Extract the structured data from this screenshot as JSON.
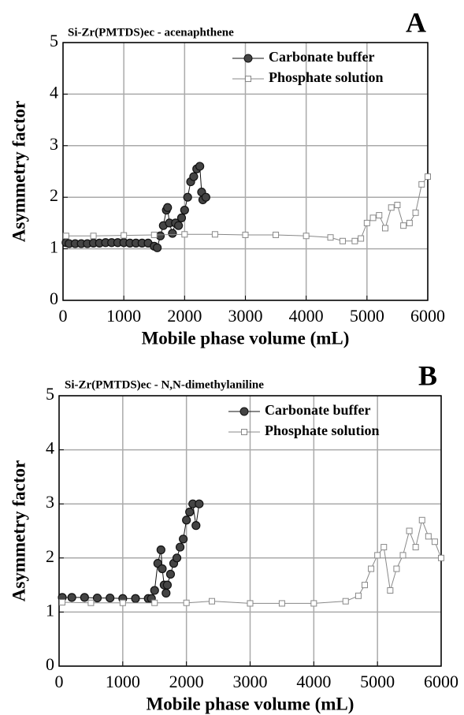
{
  "chart_data": [
    {
      "type": "line",
      "title": "Si-Zr(PMTDS)ec   -  acenaphthene",
      "panel_label": "A",
      "xlabel": "Mobile phase volume (mL)",
      "ylabel": "Asymmetry factor",
      "xlim": [
        0,
        6000
      ],
      "ylim": [
        0,
        5
      ],
      "xticks": [
        0,
        1000,
        2000,
        3000,
        4000,
        5000,
        6000
      ],
      "yticks": [
        0,
        1,
        2,
        3,
        4,
        5
      ],
      "grid": true,
      "legend": "upper right",
      "series": [
        {
          "name": "Carbonate buffer",
          "color": "#111111",
          "marker": "circle",
          "x": [
            50,
            100,
            200,
            300,
            400,
            500,
            600,
            700,
            800,
            900,
            1000,
            1100,
            1200,
            1300,
            1400,
            1500,
            1550,
            1600,
            1650,
            1700,
            1720,
            1750,
            1800,
            1850,
            1900,
            1950,
            2000,
            2050,
            2100,
            2150,
            2200,
            2250,
            2280,
            2300,
            2350
          ],
          "values": [
            1.12,
            1.1,
            1.1,
            1.1,
            1.1,
            1.11,
            1.11,
            1.12,
            1.12,
            1.12,
            1.12,
            1.11,
            1.11,
            1.11,
            1.11,
            1.05,
            1.02,
            1.25,
            1.45,
            1.75,
            1.8,
            1.5,
            1.3,
            1.5,
            1.45,
            1.6,
            1.75,
            2.0,
            2.3,
            2.4,
            2.55,
            2.6,
            2.1,
            1.95,
            2.0
          ]
        },
        {
          "name": "Phosphate solution",
          "color": "#888888",
          "marker": "square",
          "x": [
            50,
            500,
            1000,
            1500,
            2000,
            2500,
            3000,
            3500,
            4000,
            4400,
            4600,
            4800,
            4900,
            5000,
            5100,
            5200,
            5300,
            5400,
            5500,
            5600,
            5700,
            5800,
            5900,
            6000
          ],
          "values": [
            1.25,
            1.25,
            1.26,
            1.27,
            1.28,
            1.28,
            1.27,
            1.27,
            1.25,
            1.22,
            1.15,
            1.15,
            1.2,
            1.5,
            1.6,
            1.65,
            1.4,
            1.8,
            1.85,
            1.45,
            1.5,
            1.7,
            2.25,
            2.4
          ]
        }
      ]
    },
    {
      "type": "line",
      "title": "Si-Zr(PMTDS)ec   -   N,N-dimethylaniline",
      "panel_label": "B",
      "xlabel": "Mobile phase volume (mL)",
      "ylabel": "Asymmetry factor",
      "xlim": [
        0,
        6000
      ],
      "ylim": [
        0,
        5
      ],
      "xticks": [
        0,
        1000,
        2000,
        3000,
        4000,
        5000,
        6000
      ],
      "yticks": [
        0,
        1,
        2,
        3,
        4,
        5
      ],
      "grid": true,
      "legend": "upper right",
      "series": [
        {
          "name": "Carbonate buffer",
          "color": "#111111",
          "marker": "circle",
          "x": [
            50,
            200,
            400,
            600,
            800,
            1000,
            1200,
            1400,
            1450,
            1500,
            1550,
            1600,
            1620,
            1650,
            1680,
            1700,
            1750,
            1800,
            1850,
            1900,
            1950,
            2000,
            2050,
            2100,
            2150,
            2200
          ],
          "values": [
            1.27,
            1.27,
            1.27,
            1.26,
            1.26,
            1.25,
            1.25,
            1.25,
            1.25,
            1.4,
            1.9,
            2.15,
            1.8,
            1.5,
            1.35,
            1.5,
            1.7,
            1.9,
            2.0,
            2.2,
            2.35,
            2.7,
            2.85,
            3.0,
            2.6,
            3.0
          ]
        },
        {
          "name": "Phosphate solution",
          "color": "#888888",
          "marker": "square",
          "x": [
            50,
            500,
            1000,
            1500,
            2000,
            2400,
            3000,
            3500,
            4000,
            4500,
            4700,
            4800,
            4900,
            5000,
            5100,
            5200,
            5300,
            5400,
            5500,
            5600,
            5700,
            5800,
            5900,
            6000
          ],
          "values": [
            1.18,
            1.17,
            1.17,
            1.17,
            1.17,
            1.2,
            1.16,
            1.16,
            1.16,
            1.2,
            1.3,
            1.5,
            1.8,
            2.05,
            2.2,
            1.4,
            1.8,
            2.05,
            2.5,
            2.2,
            2.7,
            2.4,
            2.3,
            2.0
          ]
        }
      ]
    }
  ]
}
